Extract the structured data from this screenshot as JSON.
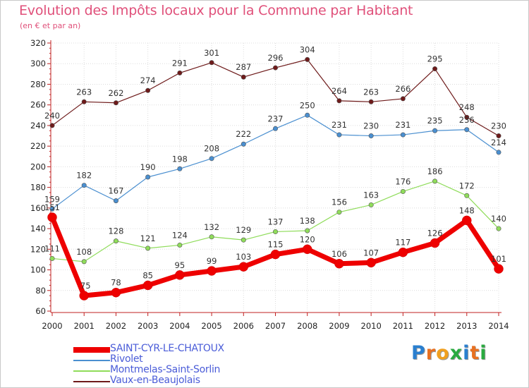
{
  "chart_data": {
    "type": "line",
    "title": "Evolution des Impôts locaux pour la Commune par Habitant",
    "subtitle": "(en € et par an)",
    "xlabel": "",
    "ylabel": "",
    "ylim": [
      60,
      320
    ],
    "yticks": [
      "60",
      "80",
      "100",
      "120",
      "140",
      "160",
      "180",
      "200",
      "220",
      "240",
      "260",
      "280",
      "300",
      "320"
    ],
    "grid": true,
    "categories": [
      "2000",
      "2001",
      "2002",
      "2003",
      "2004",
      "2005",
      "2006",
      "2007",
      "2008",
      "2009",
      "2010",
      "2011",
      "2012",
      "2013",
      "2014"
    ],
    "series": [
      {
        "name": "SAINT-CYR-LE-CHATOUX",
        "color": "#ee0000",
        "values": [
          151,
          75,
          78,
          85,
          95,
          99,
          103,
          115,
          120,
          106,
          107,
          117,
          126,
          148,
          101
        ]
      },
      {
        "name": "Rivolet",
        "color": "#4a8fd0",
        "values": [
          159,
          182,
          167,
          190,
          198,
          208,
          222,
          237,
          250,
          231,
          230,
          231,
          235,
          236,
          214
        ]
      },
      {
        "name": "Montmelas-Saint-Sorlin",
        "color": "#8fdc5a",
        "values": [
          111,
          108,
          128,
          121,
          124,
          132,
          129,
          137,
          138,
          156,
          163,
          176,
          186,
          172,
          140
        ]
      },
      {
        "name": "Vaux-en-Beaujolais",
        "color": "#6e1a1a",
        "values": [
          240,
          263,
          262,
          274,
          291,
          301,
          287,
          296,
          304,
          264,
          263,
          266,
          295,
          248,
          230
        ]
      }
    ],
    "legend_position": "bottom-left"
  },
  "logo": {
    "letters": [
      "P",
      "r",
      "o",
      "x",
      "i",
      "t",
      "i"
    ],
    "colors": [
      "#2a7fcf",
      "#e87020",
      "#f0a020",
      "#2aaa40",
      "#2a7fcf",
      "#e87020",
      "#2aaa40"
    ]
  }
}
